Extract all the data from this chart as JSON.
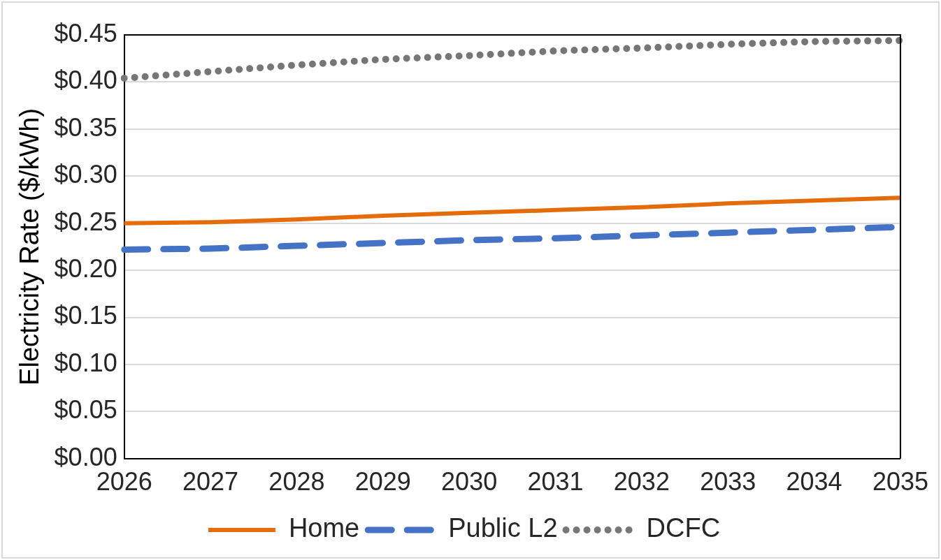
{
  "chart_data": {
    "type": "line",
    "ylabel": "Electricity Rate ($/kWh)",
    "categories": [
      "2026",
      "2027",
      "2028",
      "2029",
      "2030",
      "2031",
      "2032",
      "2033",
      "2034",
      "2035"
    ],
    "series": [
      {
        "name": "Home",
        "color": "#e46c0a",
        "line_style": "solid",
        "values": [
          0.25,
          0.251,
          0.254,
          0.258,
          0.261,
          0.264,
          0.267,
          0.271,
          0.274,
          0.277
        ]
      },
      {
        "name": "Public L2",
        "color": "#4472c4",
        "line_style": "dashed",
        "values": [
          0.222,
          0.223,
          0.226,
          0.229,
          0.232,
          0.234,
          0.237,
          0.24,
          0.243,
          0.246
        ]
      },
      {
        "name": "DCFC",
        "color": "#767676",
        "line_style": "dotted",
        "values": [
          0.404,
          0.411,
          0.418,
          0.424,
          0.428,
          0.433,
          0.436,
          0.44,
          0.443,
          0.444
        ]
      }
    ],
    "ylim": [
      0,
      0.45
    ],
    "yticks": [
      {
        "value": 0,
        "label": "$0.00"
      },
      {
        "value": 0.05,
        "label": "$0.05"
      },
      {
        "value": 0.1,
        "label": "$0.10"
      },
      {
        "value": 0.15,
        "label": "$0.15"
      },
      {
        "value": 0.2,
        "label": "$0.20"
      },
      {
        "value": 0.25,
        "label": "$0.25"
      },
      {
        "value": 0.3,
        "label": "$0.30"
      },
      {
        "value": 0.35,
        "label": "$0.35"
      },
      {
        "value": 0.4,
        "label": "$0.40"
      },
      {
        "value": 0.45,
        "label": "$0.45"
      }
    ],
    "grid": "y",
    "legend": "bottom",
    "marker": "none"
  }
}
